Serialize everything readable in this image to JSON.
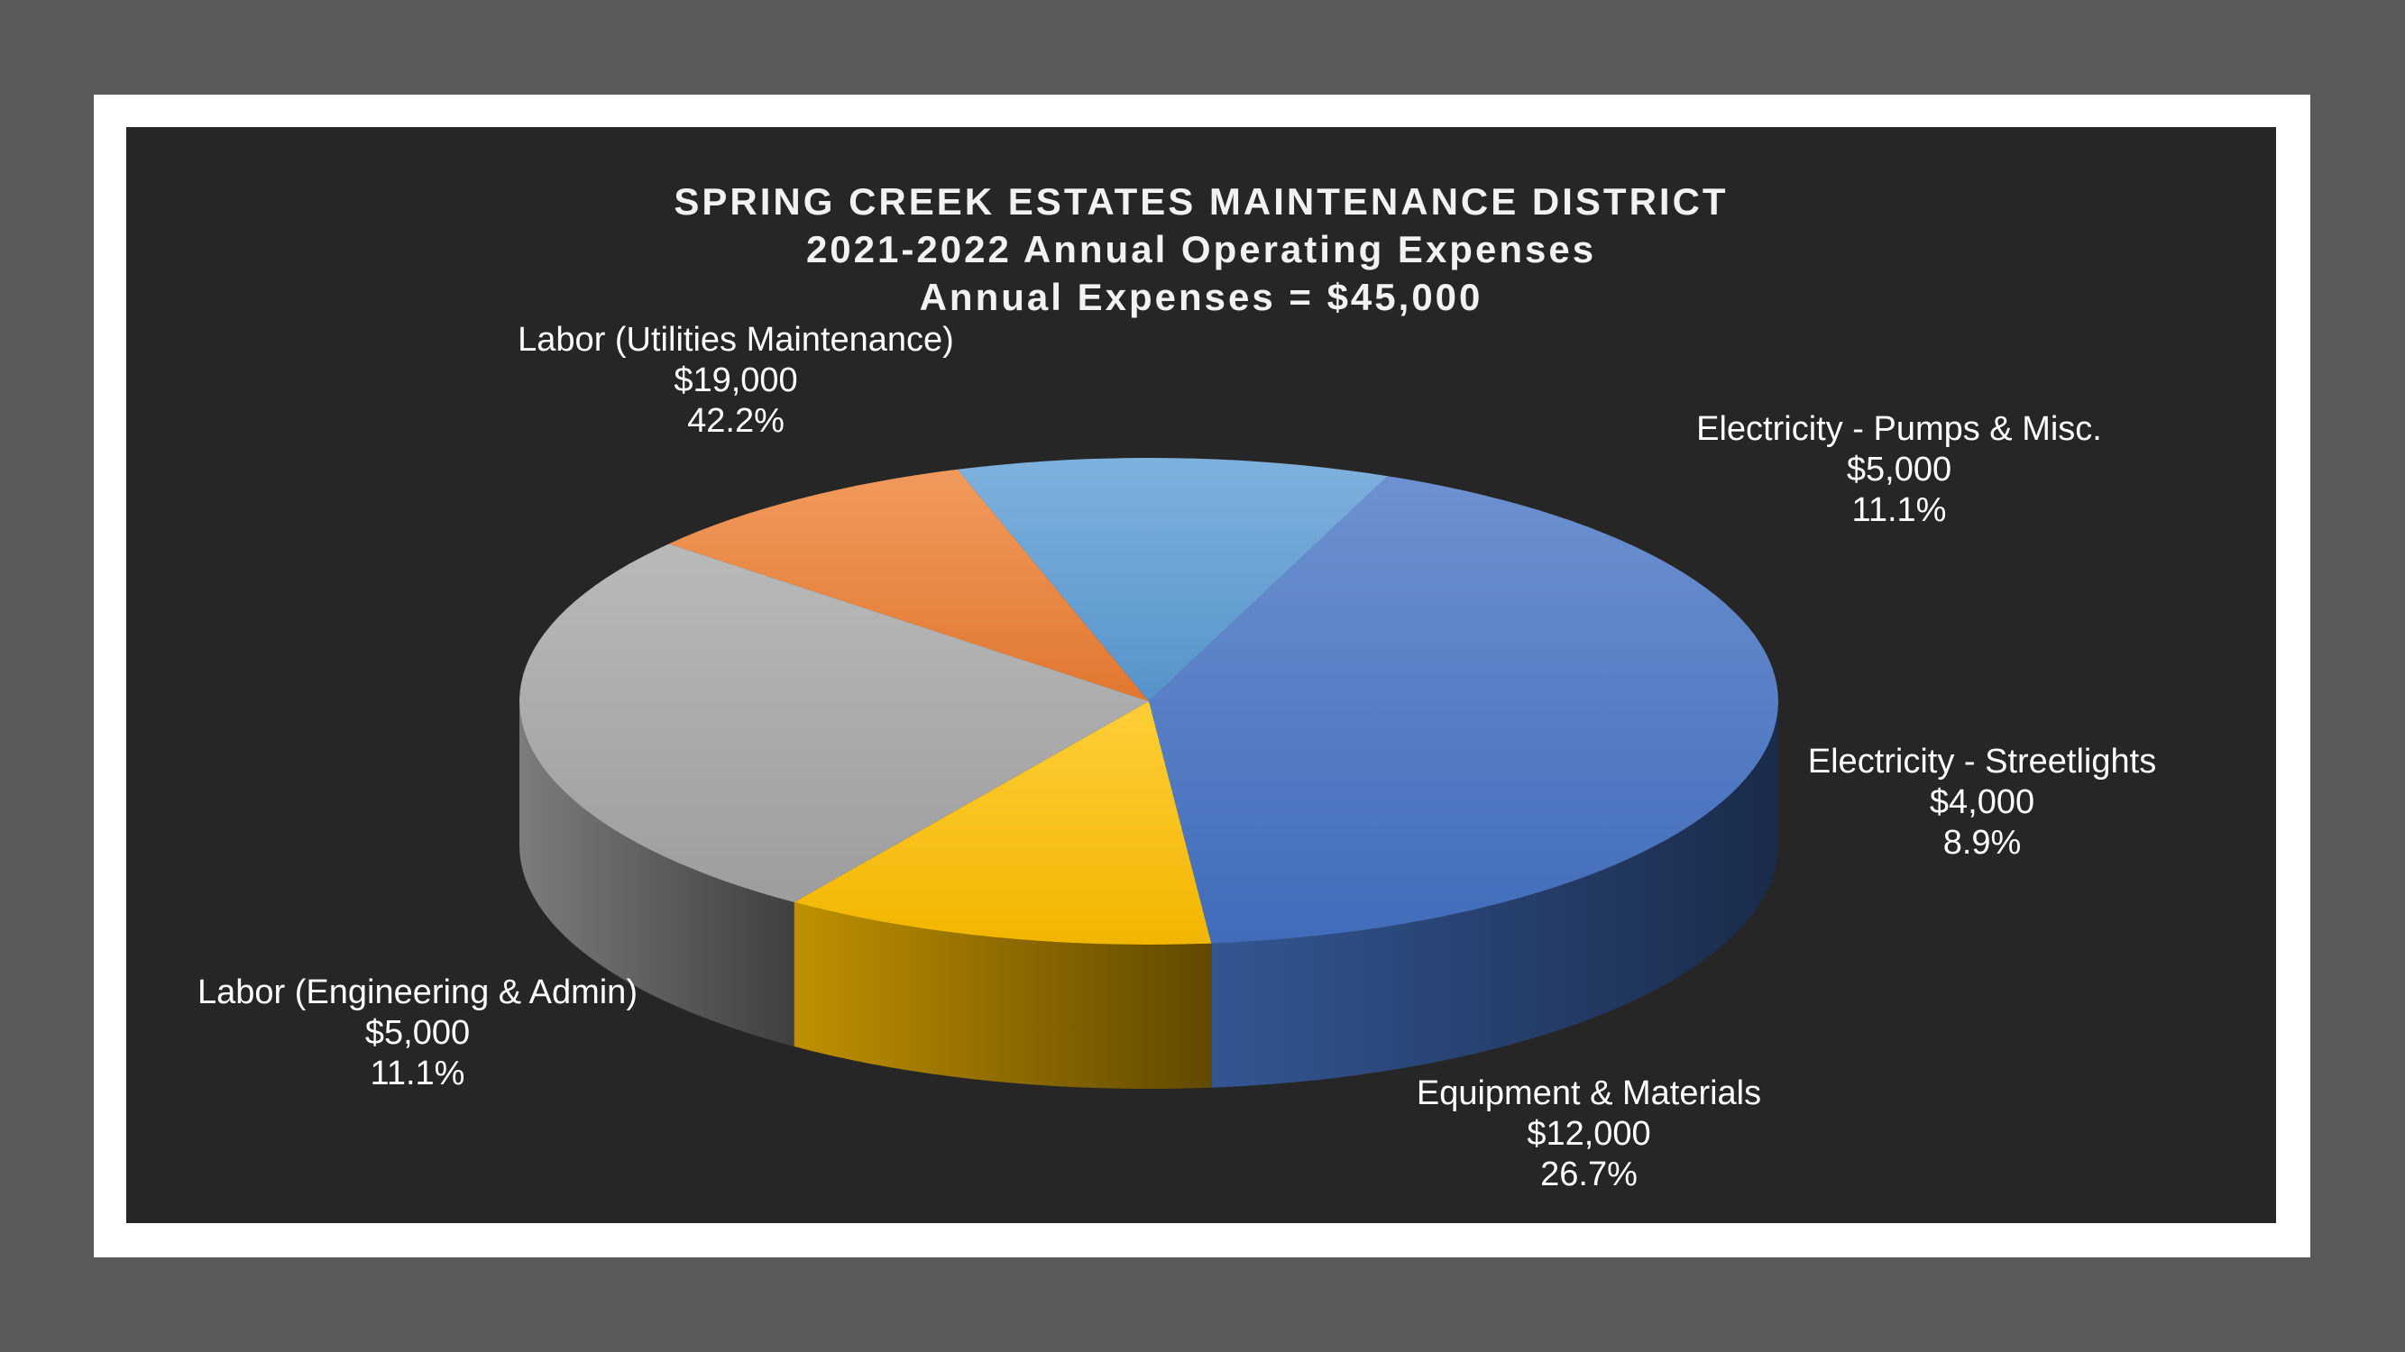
{
  "chart_data": {
    "type": "pie",
    "style": "3d",
    "title_lines": [
      "SPRING CREEK ESTATES MAINTENANCE DISTRICT",
      "2021-2022 Annual Operating Expenses",
      "Annual Expenses = $45,000"
    ],
    "slices": [
      {
        "label": "Labor (Utilities Maintenance)",
        "value": 19000,
        "value_text": "$19,000",
        "percent_text": "42.2%",
        "color": "#4472c4"
      },
      {
        "label": "Electricity - Pumps & Misc.",
        "value": 5000,
        "value_text": "$5,000",
        "percent_text": "11.1%",
        "color": "#5b9bd5"
      },
      {
        "label": "Electricity - Streetlights",
        "value": 4000,
        "value_text": "$4,000",
        "percent_text": "8.9%",
        "color": "#ed7d31"
      },
      {
        "label": "Equipment & Materials",
        "value": 12000,
        "value_text": "$12,000",
        "percent_text": "26.7%",
        "color": "#a5a5a5"
      },
      {
        "label": "Labor (Engineering & Admin)",
        "value": 5000,
        "value_text": "$5,000",
        "percent_text": "11.1%",
        "color": "#ffc000"
      }
    ]
  }
}
